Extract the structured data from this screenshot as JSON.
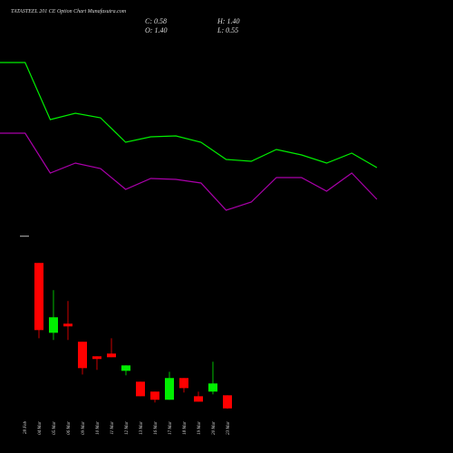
{
  "header": {
    "title": "TATASTEEL 201 CE Option  Chart Munafasutra.com",
    "close": "C: 0.58",
    "high": "H: 1.40",
    "open": "O: 1.40",
    "low": "L: 0.55"
  },
  "chart_data": [
    {
      "type": "line",
      "ylim": [
        0,
        500
      ],
      "series": [
        {
          "color": "#00ee00",
          "values": [
            431,
            431,
            368,
            375,
            370,
            343,
            349,
            350,
            343,
            324,
            322,
            335,
            329,
            320,
            331,
            315
          ]
        },
        {
          "color": "#aa00aa",
          "values": [
            353,
            353,
            309,
            320,
            314,
            291,
            303,
            302,
            298,
            268,
            277,
            304,
            304,
            289,
            309,
            280
          ]
        }
      ]
    },
    {
      "type": "candlestick",
      "ylim": [
        0,
        14
      ],
      "up_color": "#00ee00",
      "down_color": "#ff0000",
      "doji_color": "#bbbbbb",
      "categories": [
        "28 Feb",
        "04 Mar",
        "05 Mar",
        "06 Mar",
        "09 Mar",
        "10 Mar",
        "11 Mar",
        "12 Mar",
        "13 Mar",
        "16 Mar",
        "17 Mar",
        "18 Mar",
        "19 Mar",
        "20 Mar",
        "23 Mar"
      ],
      "open": [
        11.38,
        9.68,
        5.31,
        5.88,
        4.75,
        3.84,
        4.01,
        2.93,
        2.25,
        1.63,
        1.12,
        2.48,
        1.34,
        1.63,
        1.4
      ],
      "high": [
        11.38,
        9.68,
        7.98,
        7.3,
        4.75,
        3.84,
        4.97,
        3.27,
        2.25,
        1.63,
        2.87,
        2.48,
        1.63,
        3.5,
        1.4
      ],
      "low": [
        11.38,
        4.97,
        4.86,
        4.86,
        2.7,
        2.99,
        3.78,
        2.65,
        1.34,
        0.95,
        1.12,
        1.57,
        1.0,
        1.46,
        0.55
      ],
      "close": [
        11.38,
        5.48,
        6.28,
        5.71,
        3.1,
        3.67,
        3.78,
        3.27,
        1.34,
        1.12,
        2.48,
        1.85,
        1.0,
        2.14,
        0.58
      ]
    }
  ]
}
